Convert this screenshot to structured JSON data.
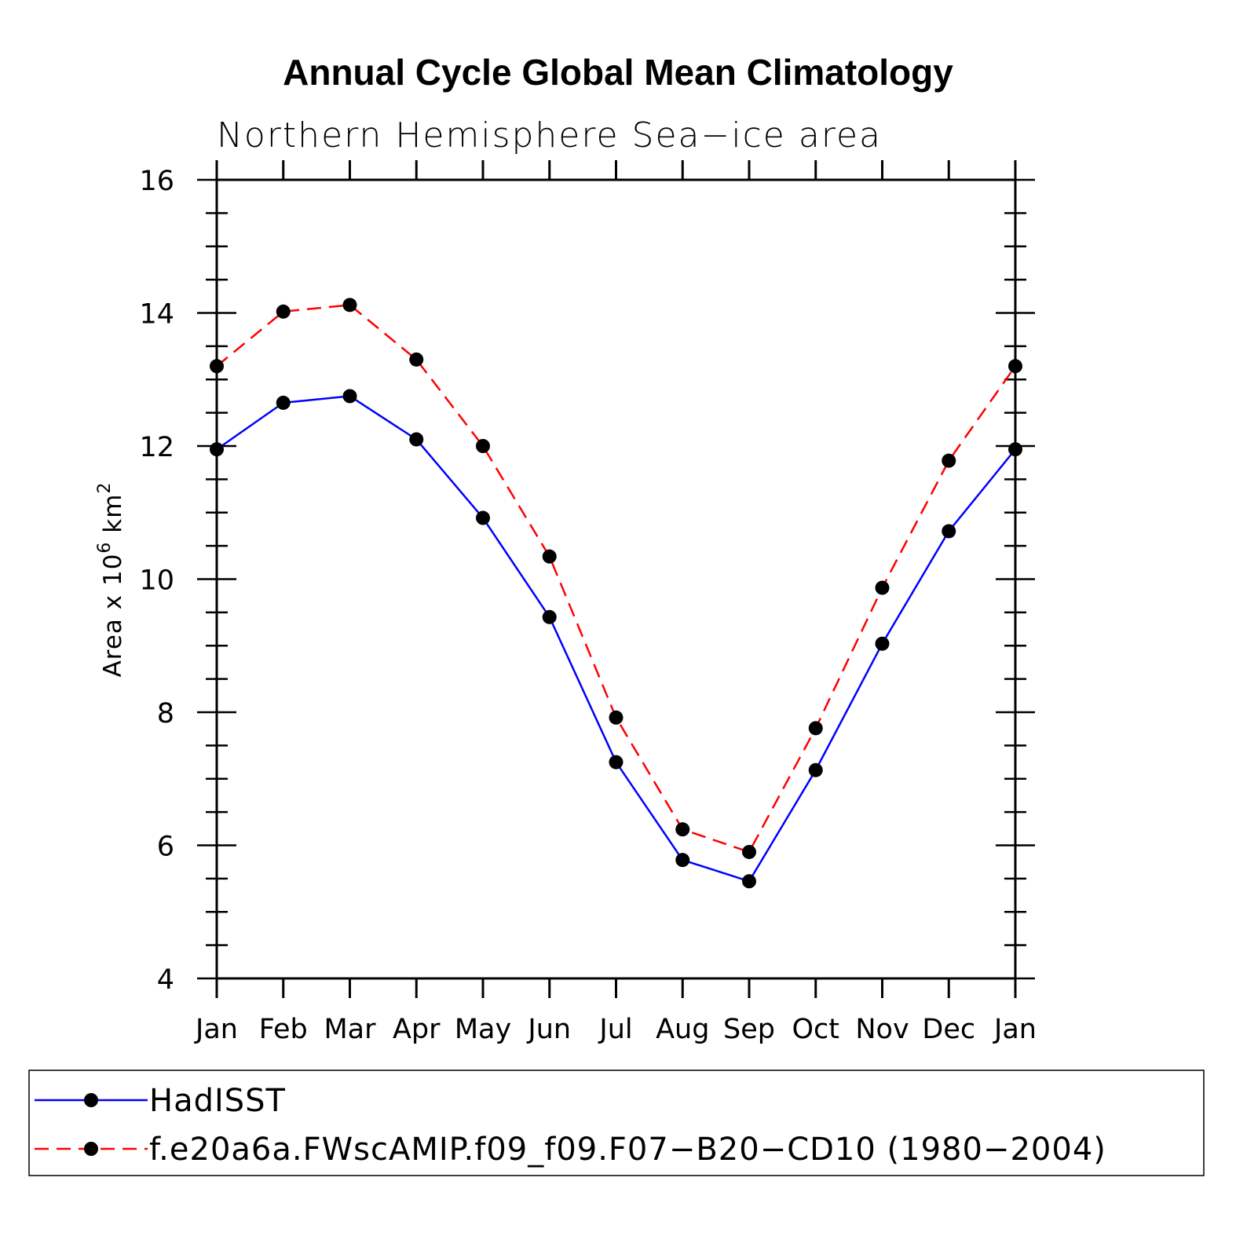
{
  "chart_data": {
    "type": "line",
    "title": "Annual Cycle Global Mean Climatology",
    "subtitle": "Northern Hemisphere Sea−ice area",
    "ylabel": {
      "base": "Area x 10",
      "exp1": "6",
      "unit": " km",
      "exp2": "2"
    },
    "xlabel": "",
    "ylim": [
      4,
      16
    ],
    "yticks": [
      "4",
      "6",
      "8",
      "10",
      "12",
      "14",
      "16"
    ],
    "categories": [
      "Jan",
      "Feb",
      "Mar",
      "Apr",
      "May",
      "Jun",
      "Jul",
      "Aug",
      "Sep",
      "Oct",
      "Nov",
      "Dec",
      "Jan"
    ],
    "series": [
      {
        "name": "HadISST",
        "color": "#0000ff",
        "dashed": false,
        "values": [
          11.95,
          12.65,
          12.75,
          12.1,
          10.92,
          9.43,
          7.25,
          5.78,
          5.46,
          7.13,
          9.03,
          10.72,
          11.95
        ]
      },
      {
        "name": "f.e20a6a.FWscAMIP.f09_f09.F07−B20−CD10 (1980−2004)",
        "color": "#ff0000",
        "dashed": true,
        "values": [
          13.2,
          14.02,
          14.12,
          13.3,
          12.0,
          10.34,
          7.92,
          6.24,
          5.9,
          7.76,
          9.87,
          11.78,
          13.2
        ]
      }
    ],
    "legend_position": "bottom",
    "grid": false
  }
}
